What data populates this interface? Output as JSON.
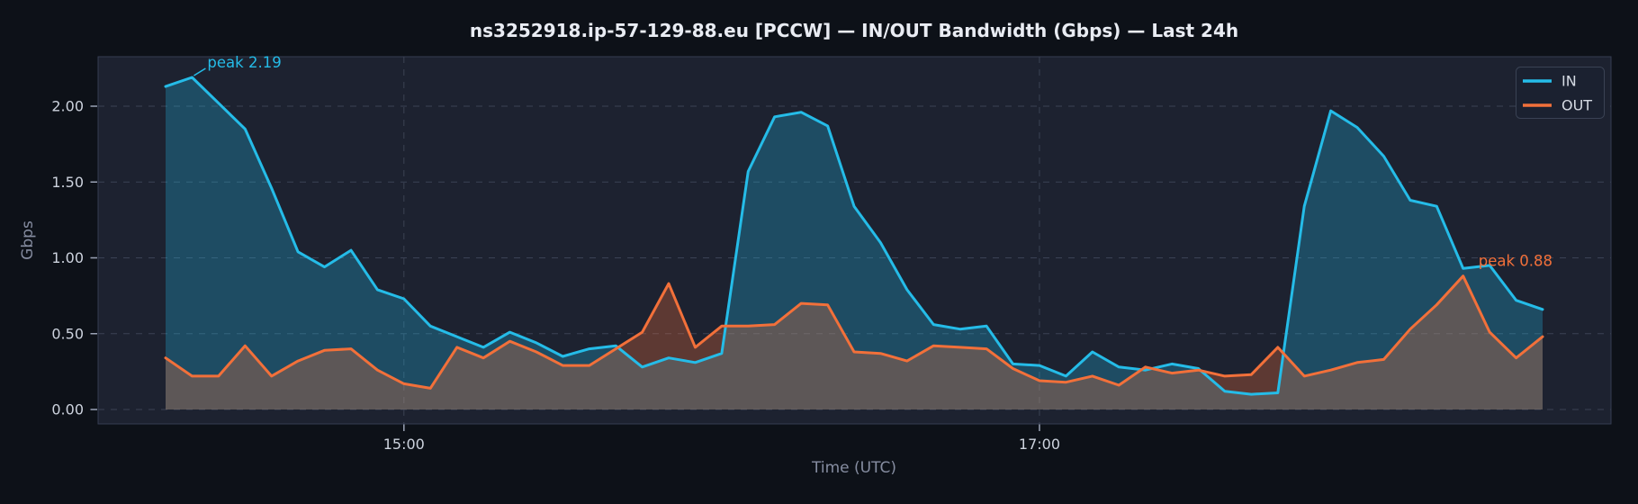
{
  "header": {
    "title": "ns3252918.ip-57-129-88.eu [PCCW] — IN/OUT Bandwidth (Gbps) — Last 24h"
  },
  "axes": {
    "y_label": "Gbps",
    "x_label": "Time (UTC)",
    "y_ticks": [
      {
        "label": "0.00",
        "value": 0.0
      },
      {
        "label": "0.50",
        "value": 0.5
      },
      {
        "label": "1.00",
        "value": 1.0
      },
      {
        "label": "1.50",
        "value": 1.5
      },
      {
        "label": "2.00",
        "value": 2.0
      }
    ],
    "x_ticks": [
      {
        "label": "15:00",
        "index": 9
      },
      {
        "label": "17:00",
        "index": 33
      }
    ]
  },
  "legend": [
    {
      "label": "IN",
      "color": "#25bce8"
    },
    {
      "label": "OUT",
      "color": "#f2703a"
    }
  ],
  "annotations": [
    {
      "text": "peak 2.19",
      "series": "IN",
      "time": "14:20",
      "index": 1,
      "value": 2.19,
      "color": "#25bce8",
      "leader": true
    },
    {
      "text": "peak 0.88",
      "series": "OUT",
      "time": "18:20",
      "index": 49,
      "value": 0.88,
      "color": "#f2703a",
      "leader": false
    }
  ],
  "colors": {
    "background": "#0d1118",
    "plot_background": "#1d2230",
    "plot_border": "#353d52",
    "grid": "#3b4254",
    "tick_mark": "#9aa2b5",
    "tick_text": "#cdd3de",
    "muted_text": "#868da1",
    "title_text": "#e9ecf3",
    "in_line": "#25bce8",
    "in_fill_opacity": 0.28,
    "out_line": "#f2703a",
    "out_fill_opacity": 0.3
  },
  "chart_data": {
    "type": "line",
    "title": "ns3252918.ip-57-129-88.eu [PCCW] — IN/OUT Bandwidth (Gbps) — Last 24h",
    "xlabel": "Time (UTC)",
    "ylabel": "Gbps",
    "ylim": [
      -0.09,
      2.33
    ],
    "grid": true,
    "legend_position": "upper-right",
    "x": [
      "14:15",
      "14:20",
      "14:25",
      "14:30",
      "14:35",
      "14:40",
      "14:45",
      "14:50",
      "14:55",
      "15:00",
      "15:05",
      "15:10",
      "15:15",
      "15:20",
      "15:25",
      "15:30",
      "15:35",
      "15:40",
      "15:45",
      "15:50",
      "15:55",
      "16:00",
      "16:05",
      "16:10",
      "16:15",
      "16:20",
      "16:25",
      "16:30",
      "16:35",
      "16:40",
      "16:45",
      "16:50",
      "16:55",
      "17:00",
      "17:05",
      "17:10",
      "17:15",
      "17:20",
      "17:25",
      "17:30",
      "17:35",
      "17:40",
      "17:45",
      "17:50",
      "17:55",
      "18:00",
      "18:05",
      "18:10",
      "18:15",
      "18:20",
      "18:25",
      "18:30",
      "18:35"
    ],
    "series": [
      {
        "name": "IN",
        "color": "#25bce8",
        "peak": 2.19,
        "values": [
          2.13,
          2.19,
          2.02,
          1.85,
          1.46,
          1.04,
          0.94,
          1.05,
          0.79,
          0.73,
          0.55,
          0.48,
          0.41,
          0.51,
          0.44,
          0.35,
          0.4,
          0.42,
          0.28,
          0.34,
          0.31,
          0.37,
          1.57,
          1.93,
          1.96,
          1.87,
          1.34,
          1.1,
          0.79,
          0.56,
          0.53,
          0.55,
          0.3,
          0.29,
          0.22,
          0.38,
          0.28,
          0.26,
          0.3,
          0.27,
          0.12,
          0.1,
          0.11,
          1.34,
          1.97,
          1.86,
          1.67,
          1.38,
          1.34,
          0.93,
          0.95,
          0.72,
          0.66
        ]
      },
      {
        "name": "OUT",
        "color": "#f2703a",
        "peak": 0.88,
        "values": [
          0.34,
          0.22,
          0.22,
          0.42,
          0.22,
          0.32,
          0.39,
          0.4,
          0.26,
          0.17,
          0.14,
          0.41,
          0.34,
          0.45,
          0.38,
          0.29,
          0.29,
          0.4,
          0.51,
          0.83,
          0.41,
          0.55,
          0.55,
          0.56,
          0.7,
          0.69,
          0.38,
          0.37,
          0.32,
          0.42,
          0.41,
          0.4,
          0.27,
          0.19,
          0.18,
          0.22,
          0.16,
          0.28,
          0.24,
          0.26,
          0.22,
          0.23,
          0.41,
          0.22,
          0.26,
          0.31,
          0.33,
          0.53,
          0.69,
          0.88,
          0.51,
          0.34,
          0.48
        ]
      }
    ]
  }
}
